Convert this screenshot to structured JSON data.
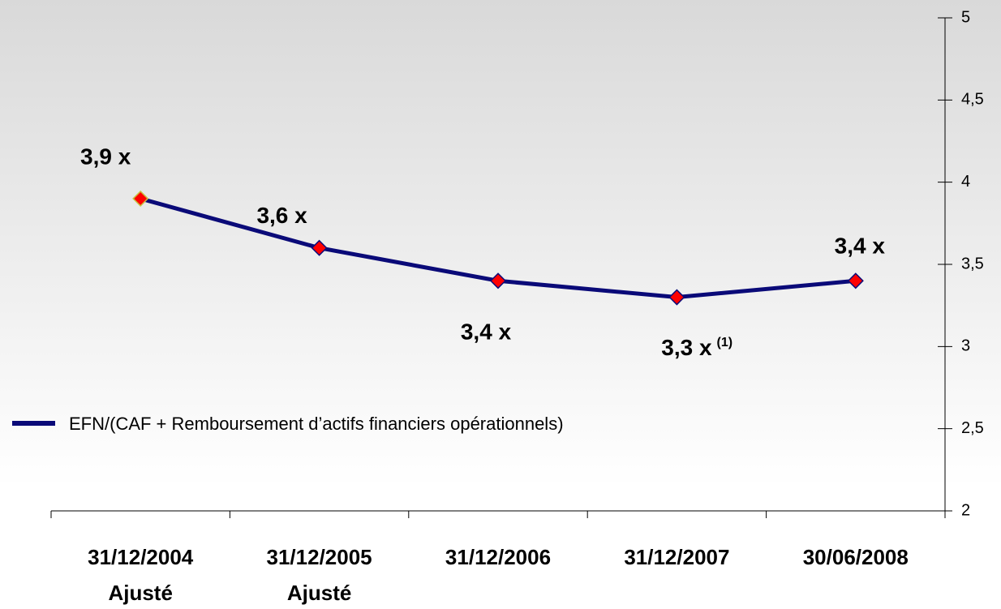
{
  "chart_data": {
    "type": "line",
    "categories": [
      [
        "31/12/2004",
        "Ajusté"
      ],
      [
        "31/12/2005",
        "Ajusté"
      ],
      [
        "31/12/2006"
      ],
      [
        "31/12/2007"
      ],
      [
        "30/06/2008"
      ]
    ],
    "series": [
      {
        "name": "EFN/(CAF + Remboursement d’actifs financiers opérationnels)",
        "color": "#0a0a78",
        "marker_color": "#ff0000",
        "values": [
          3.9,
          3.6,
          3.4,
          3.3,
          3.4
        ],
        "value_labels": [
          "3,9 x",
          "3,6 x",
          "3,4 x",
          "3,3 x",
          "3,4 x"
        ]
      }
    ],
    "annotations": [
      {
        "index": 3,
        "text": "(1)"
      }
    ],
    "ylim": [
      2,
      5
    ],
    "yticks": [
      2,
      {
        "value": 2.5,
        "label": "2,5"
      },
      3,
      {
        "value": 3.5,
        "label": "3,5"
      },
      4,
      {
        "value": 4.5,
        "label": "4,5"
      },
      5
    ],
    "y_axis_side": "right",
    "legend": "left"
  }
}
